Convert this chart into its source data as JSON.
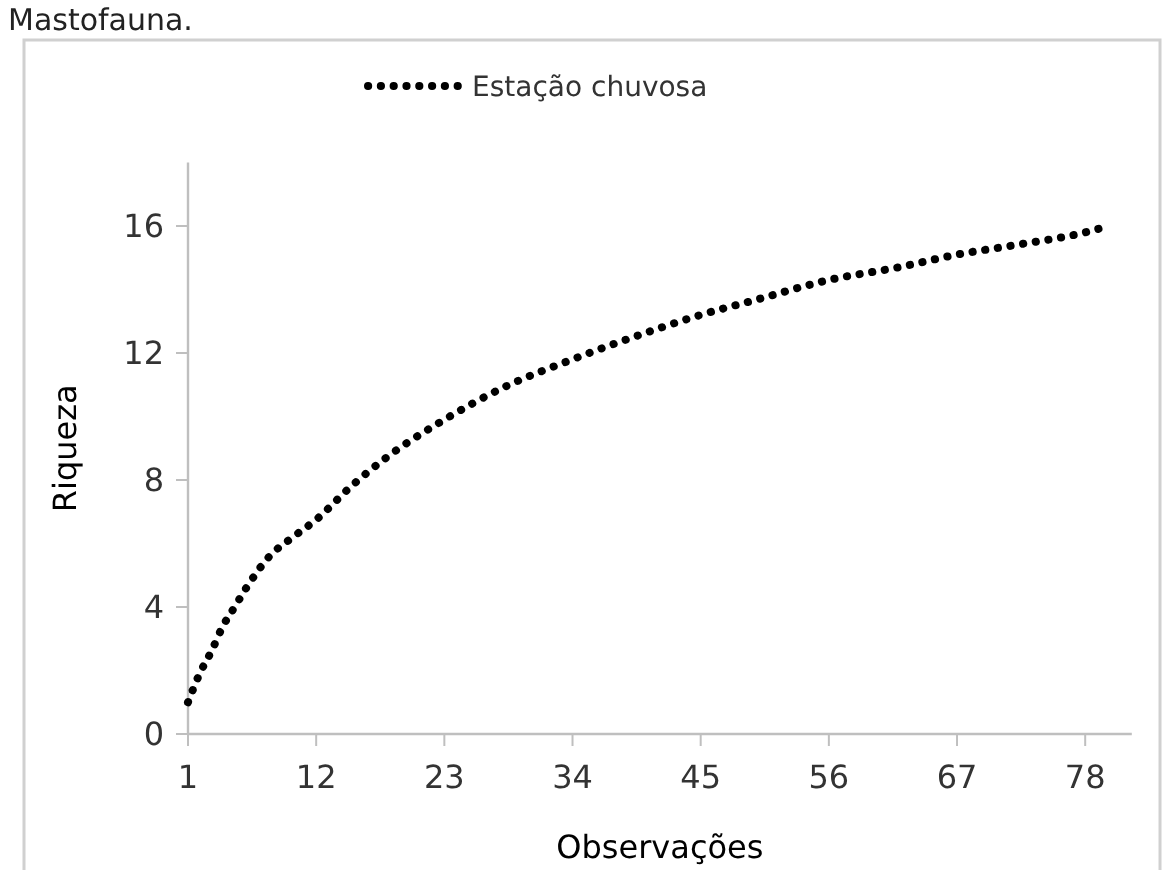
{
  "chart_data": {
    "type": "line",
    "title": "Mastofauna.",
    "xlabel": "Observações",
    "ylabel": "Riqueza",
    "xlim": [
      1,
      82
    ],
    "xticks": [
      1,
      12,
      23,
      34,
      45,
      56,
      67,
      78
    ],
    "ylim": [
      0,
      18
    ],
    "yticks": [
      0,
      4,
      8,
      12,
      16
    ],
    "grid": false,
    "legend": "top",
    "line_style": "dotted",
    "series": [
      {
        "name": "Estação chuvosa",
        "color": "#000000",
        "x": [
          1,
          2,
          3,
          4,
          5,
          6,
          8,
          10,
          12,
          15,
          18,
          23,
          28,
          34,
          40,
          45,
          50,
          56,
          62,
          67,
          72,
          78,
          80
        ],
        "values": [
          1,
          1.9,
          2.6,
          3.4,
          4.0,
          4.6,
          5.6,
          6.2,
          6.75,
          7.8,
          8.7,
          9.9,
          10.9,
          11.8,
          12.6,
          13.2,
          13.7,
          14.3,
          14.7,
          15.1,
          15.4,
          15.8,
          16.0
        ]
      }
    ]
  }
}
